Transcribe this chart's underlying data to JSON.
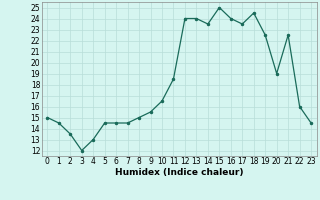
{
  "x": [
    0,
    1,
    2,
    3,
    4,
    5,
    6,
    7,
    8,
    9,
    10,
    11,
    12,
    13,
    14,
    15,
    16,
    17,
    18,
    19,
    20,
    21,
    22,
    23
  ],
  "y": [
    15.0,
    14.5,
    13.5,
    12.0,
    13.0,
    14.5,
    14.5,
    14.5,
    15.0,
    15.5,
    16.5,
    18.5,
    24.0,
    24.0,
    23.5,
    25.0,
    24.0,
    23.5,
    24.5,
    22.5,
    19.0,
    22.5,
    16.0,
    14.5
  ],
  "line_color": "#1a6b5a",
  "marker_color": "#1a6b5a",
  "bg_color": "#d5f5f0",
  "grid_color": "#b8ddd8",
  "xlabel": "Humidex (Indice chaleur)",
  "xlim": [
    -0.5,
    23.5
  ],
  "ylim": [
    11.5,
    25.5
  ],
  "yticks": [
    12,
    13,
    14,
    15,
    16,
    17,
    18,
    19,
    20,
    21,
    22,
    23,
    24,
    25
  ],
  "xticks": [
    0,
    1,
    2,
    3,
    4,
    5,
    6,
    7,
    8,
    9,
    10,
    11,
    12,
    13,
    14,
    15,
    16,
    17,
    18,
    19,
    20,
    21,
    22,
    23
  ],
  "tick_fontsize": 5.5,
  "label_fontsize": 6.5
}
